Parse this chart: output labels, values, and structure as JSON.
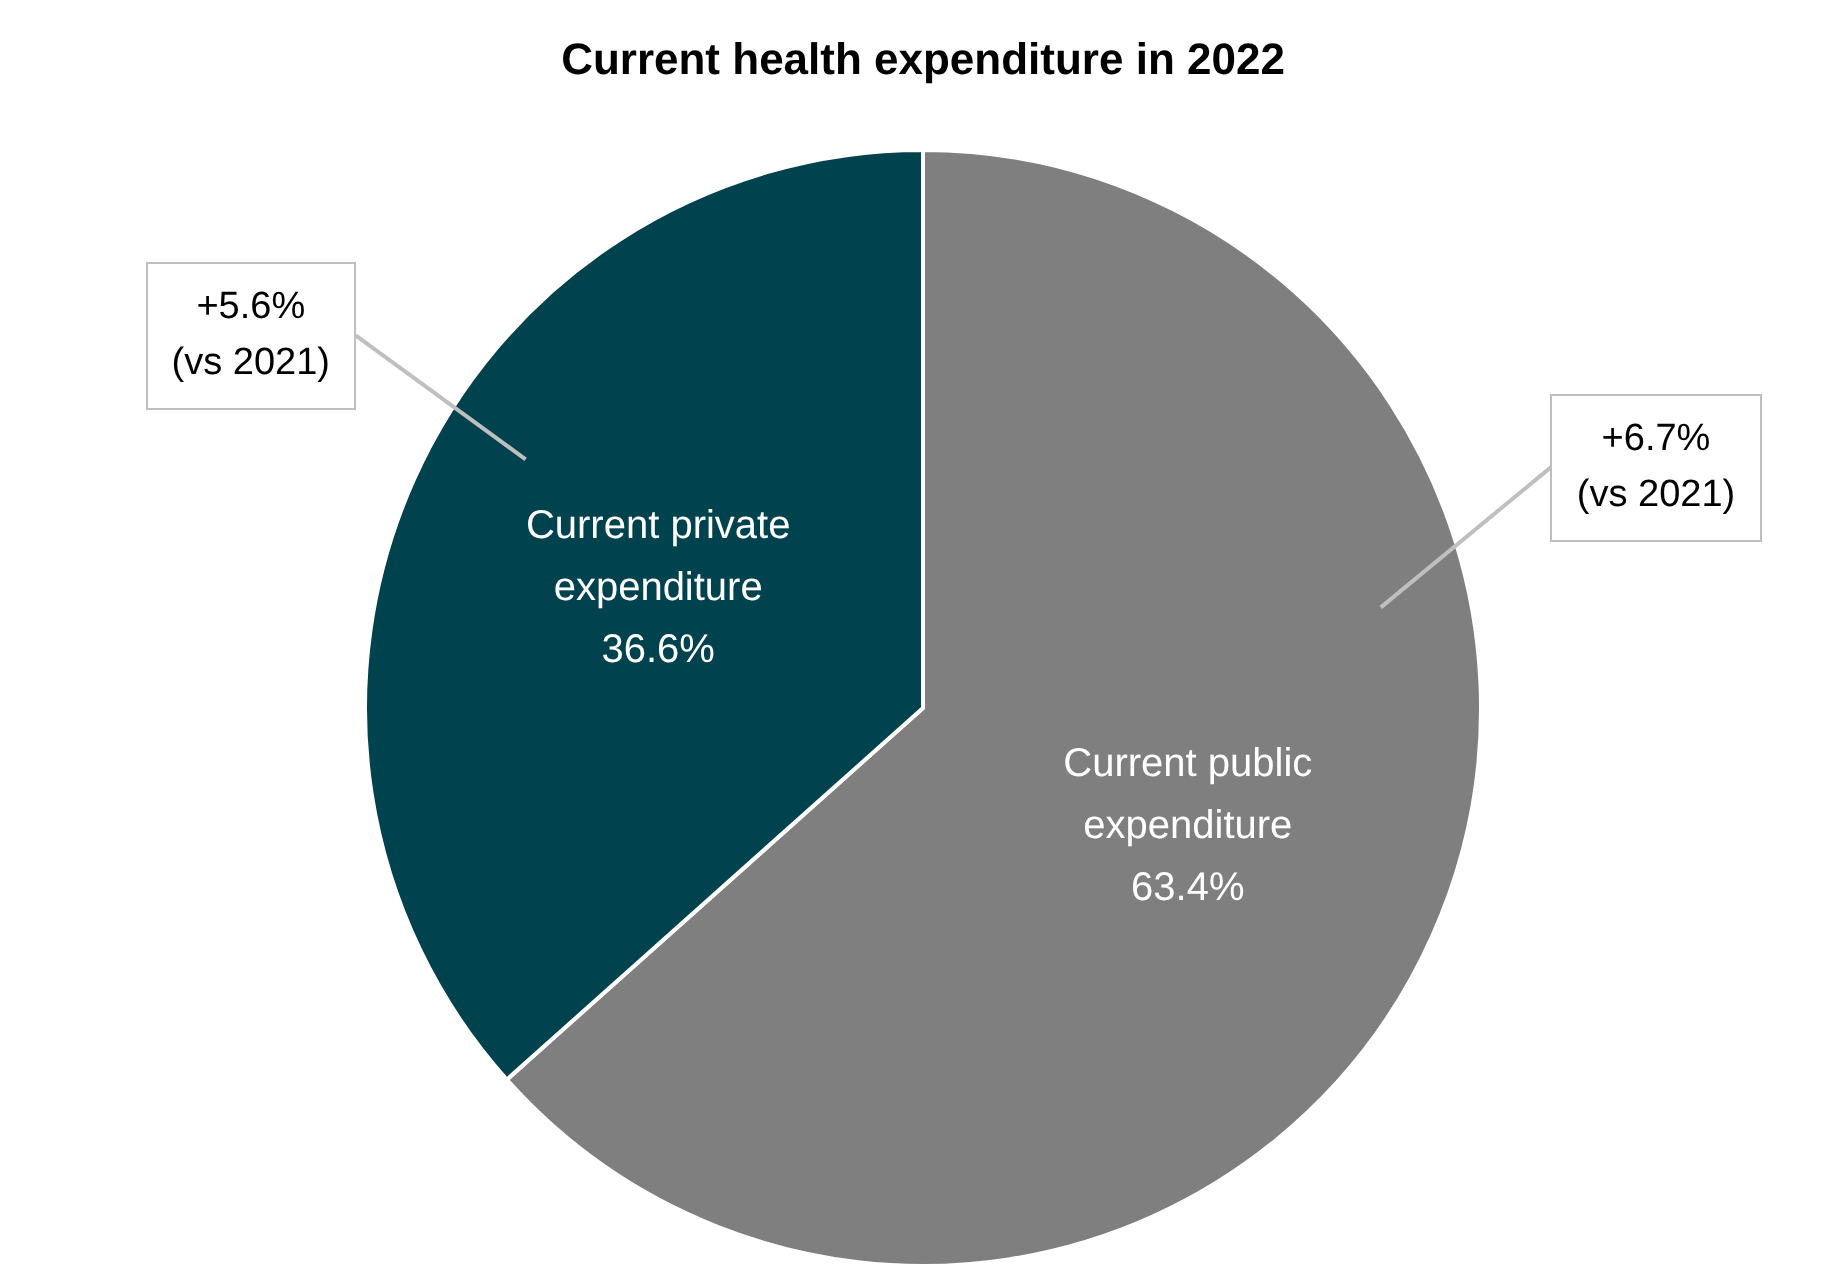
{
  "chart_data": {
    "type": "pie",
    "title": "Current health expenditure in 2022",
    "categories": [
      "Current public expenditure",
      "Current private expenditure"
    ],
    "values": [
      63.4,
      36.6
    ],
    "colors": [
      "#7f7f7f",
      "#00424e"
    ],
    "value_labels": [
      "63.4%",
      "36.6%"
    ],
    "annotations": [
      "+6.7%\n(vs 2021)",
      "+5.6%\n(vs 2021)"
    ],
    "legend": false
  }
}
